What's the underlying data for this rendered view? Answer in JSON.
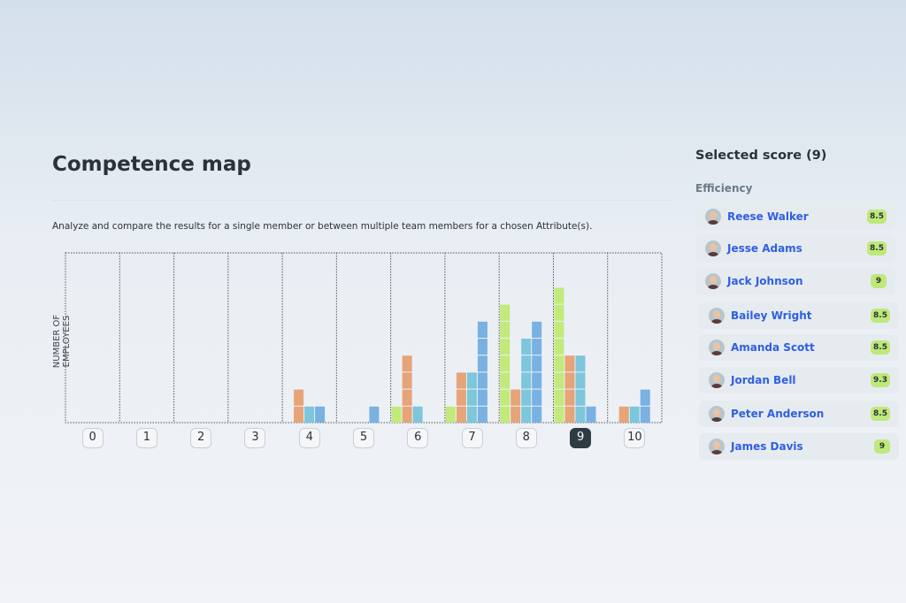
{
  "header": {
    "title": "Competence map",
    "description": "Analyze and compare the results for a single member or between multiple team members for a chosen Attribute(s)."
  },
  "chart_data": {
    "type": "bar",
    "ylabel": "NUMBER OF EMPLOYEES",
    "categories": [
      "0",
      "1",
      "2",
      "3",
      "4",
      "5",
      "6",
      "7",
      "8",
      "9",
      "10"
    ],
    "selected": "9",
    "ylim": [
      0,
      10
    ],
    "series": [
      {
        "name": "series-green",
        "color": "#c2ea7b",
        "values": [
          0,
          0,
          0,
          0,
          0,
          0,
          1,
          1,
          7,
          8,
          0
        ]
      },
      {
        "name": "series-orange",
        "color": "#e6a478",
        "values": [
          0,
          0,
          0,
          0,
          2,
          0,
          4,
          3,
          2,
          4,
          1
        ]
      },
      {
        "name": "series-teal",
        "color": "#7dc6dc",
        "values": [
          0,
          0,
          0,
          0,
          1,
          0,
          1,
          3,
          5,
          4,
          1
        ]
      },
      {
        "name": "series-blue",
        "color": "#78b1e2",
        "values": [
          0,
          0,
          0,
          0,
          1,
          1,
          0,
          6,
          6,
          1,
          2
        ]
      }
    ]
  },
  "panel": {
    "title": "Selected score (9)",
    "attribute": "Efficiency",
    "members": [
      {
        "name": "Reese Walker",
        "score": "8.5"
      },
      {
        "name": "Jesse Adams",
        "score": "8.5"
      },
      {
        "name": "Jack Johnson",
        "score": "9"
      },
      {
        "name": "Bailey Wright",
        "score": "8.5"
      },
      {
        "name": "Amanda Scott",
        "score": "8.5"
      },
      {
        "name": "Jordan Bell",
        "score": "9.3"
      },
      {
        "name": "Peter Anderson",
        "score": "8.5"
      },
      {
        "name": "James Davis",
        "score": "9"
      }
    ]
  }
}
